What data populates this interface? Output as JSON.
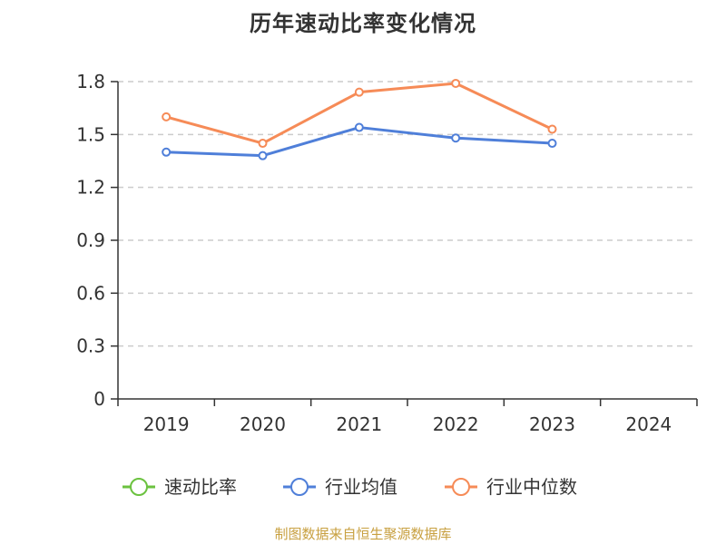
{
  "chart_data": {
    "type": "line",
    "title": "历年速动比率变化情况",
    "categories": [
      "2019",
      "2020",
      "2021",
      "2022",
      "2023",
      "2024"
    ],
    "series": [
      {
        "name": "速动比率",
        "color": "#6bc23f",
        "values": [
          null,
          null,
          null,
          null,
          null,
          null
        ]
      },
      {
        "name": "行业均值",
        "color": "#4f7fd9",
        "values": [
          1.4,
          1.38,
          1.54,
          1.48,
          1.45,
          null
        ]
      },
      {
        "name": "行业中位数",
        "color": "#f68b57",
        "values": [
          1.6,
          1.45,
          1.74,
          1.79,
          1.53,
          null
        ]
      }
    ],
    "y_ticks": [
      "0",
      "0.3",
      "0.6",
      "0.9",
      "1.2",
      "1.5",
      "1.8"
    ],
    "ylim": [
      0,
      1.8
    ],
    "grid": true,
    "legend_position": "bottom"
  },
  "source_text": "制图数据来自恒生聚源数据库"
}
